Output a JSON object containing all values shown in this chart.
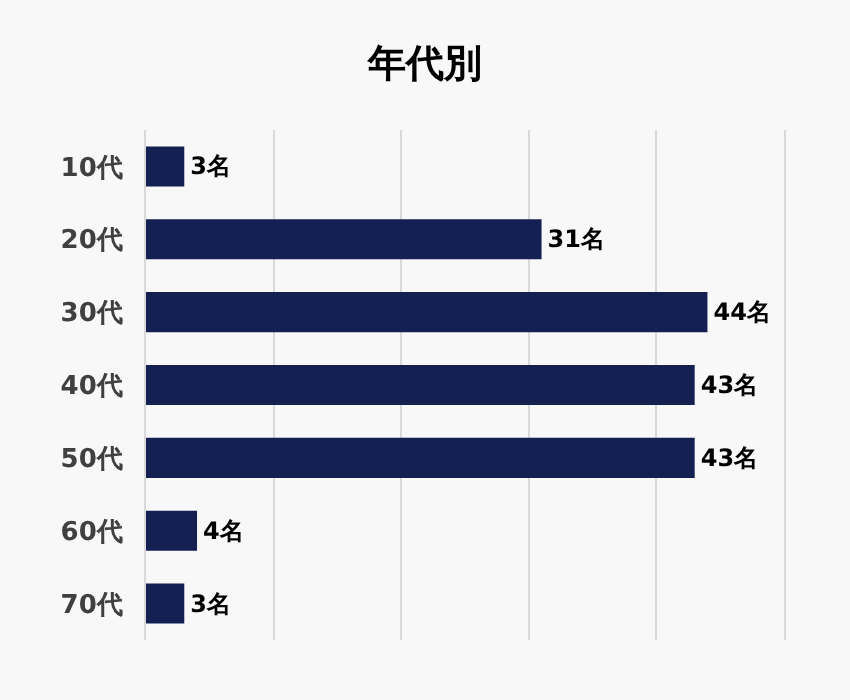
{
  "chart_data": {
    "type": "bar",
    "orientation": "horizontal",
    "title": "年代別",
    "categories": [
      "10代",
      "20代",
      "30代",
      "40代",
      "50代",
      "60代",
      "70代"
    ],
    "values": [
      3,
      31,
      44,
      43,
      43,
      4,
      3
    ],
    "value_labels": [
      "3名",
      "31名",
      "44名",
      "43名",
      "43名",
      "4名",
      "3名"
    ],
    "color": "#141f52",
    "xlim": [
      0,
      50
    ],
    "xticks": [
      {
        "value": 0,
        "label": null
      },
      {
        "value": 10,
        "label": null
      },
      {
        "value": 20,
        "label": null
      },
      {
        "value": 30,
        "label": null
      },
      {
        "value": 40,
        "label": null
      },
      {
        "value": 50,
        "label": null
      }
    ],
    "grid": "x",
    "tick_labels": "y",
    "legend": false
  }
}
